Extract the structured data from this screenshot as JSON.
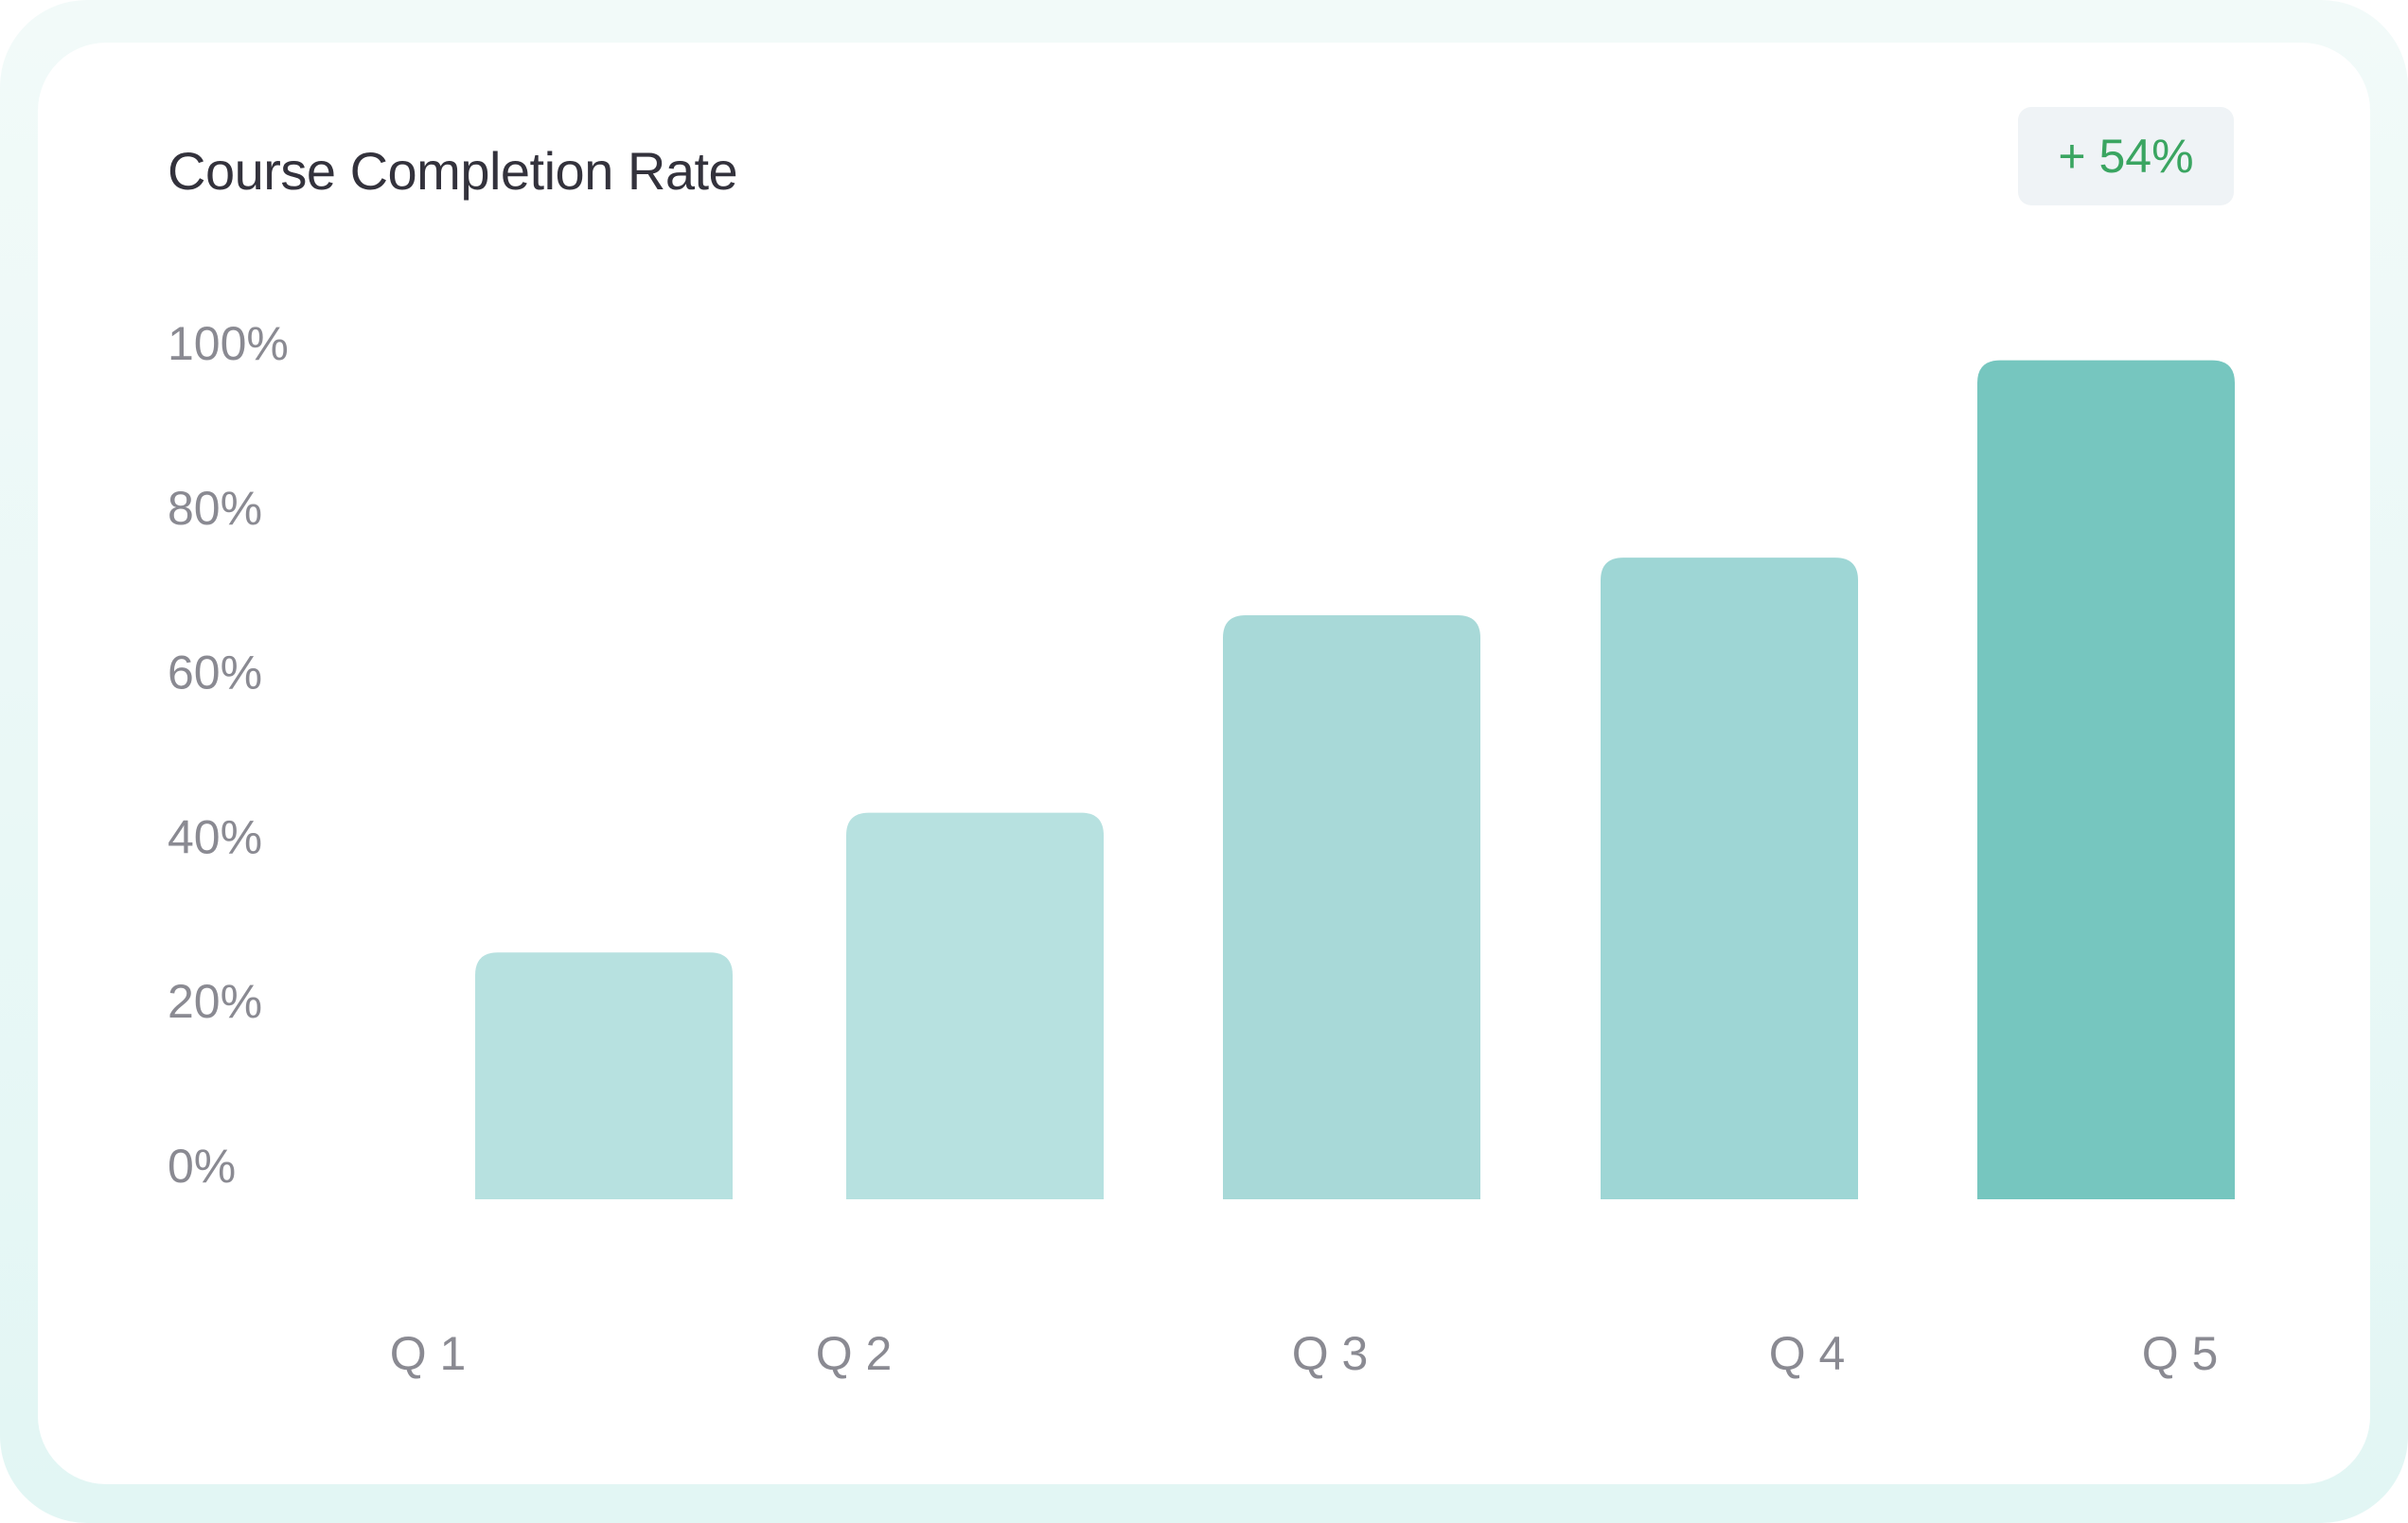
{
  "chart_data": {
    "type": "bar",
    "title": "Course Completion Rate",
    "badge": "+ 54%",
    "categories": [
      "Q 1",
      "Q 2",
      "Q 3",
      "Q 4",
      "Q 5"
    ],
    "values": [
      30,
      47,
      71,
      78,
      102
    ],
    "y_ticks": [
      "0%",
      "20%",
      "40%",
      "60%",
      "80%",
      "100%"
    ],
    "ylim": [
      0,
      105
    ],
    "xlabel": "",
    "ylabel": "",
    "grid": false,
    "colors": {
      "bars": [
        "#b7e1e0",
        "#b7e1e0",
        "#a8d9d8",
        "#9ed6d5",
        "#76c6bf"
      ],
      "badge_text": "#3aa561",
      "title": "#33323c",
      "tick": "#8a8a92"
    }
  }
}
